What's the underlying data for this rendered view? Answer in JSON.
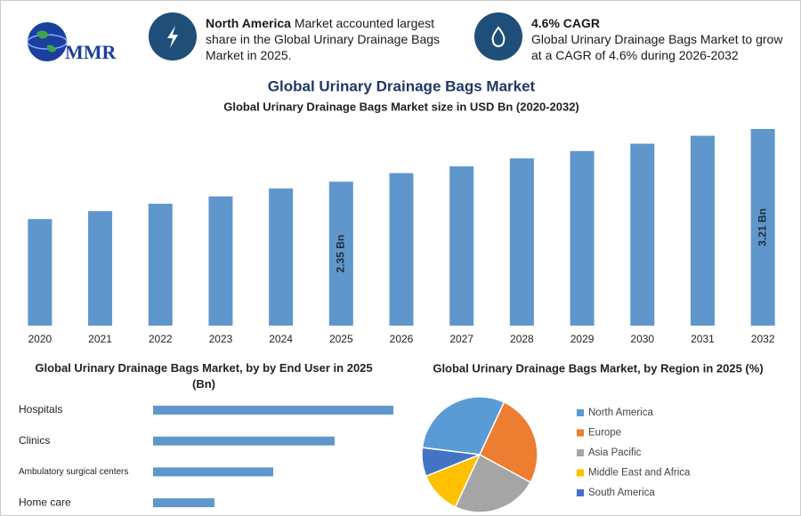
{
  "header": {
    "logo": "MMR",
    "info": [
      {
        "highlight": "North America",
        "text": "Market accounted largest share in the Global Urinary Drainage Bags Market in 2025."
      },
      {
        "highlight": "4.6% CAGR",
        "text": "Global Urinary Drainage Bags Market to grow at a CAGR of 4.6% during 2026-2032"
      }
    ]
  },
  "chart_data": [
    {
      "type": "bar",
      "title": "Global Urinary Drainage Bags Market",
      "subtitle": "Global Urinary Drainage Bags Market size in USD Bn (2020-2032)",
      "categories": [
        "2020",
        "2021",
        "2022",
        "2023",
        "2024",
        "2025",
        "2026",
        "2027",
        "2028",
        "2029",
        "2030",
        "2031",
        "2032"
      ],
      "values": [
        1.74,
        1.87,
        1.99,
        2.11,
        2.24,
        2.35,
        2.49,
        2.6,
        2.73,
        2.85,
        2.97,
        3.1,
        3.21
      ],
      "value_labels": [
        null,
        null,
        null,
        null,
        null,
        "2.35 Bn",
        null,
        null,
        null,
        null,
        null,
        null,
        "3.21 Bn"
      ],
      "color": "#5f97cc"
    },
    {
      "type": "hbar",
      "title": "Global Urinary Drainage Bags Market, by by End User in 2025 (Bn)",
      "categories": [
        "Hospitals",
        "Clinics",
        "Ambulatory surgical centers",
        "Home care"
      ],
      "values": [
        0.94,
        0.71,
        0.47,
        0.24
      ],
      "color": "#5f97cc"
    },
    {
      "type": "pie",
      "title": "Global Urinary Drainage Bags Market, by Region in 2025 (%)",
      "categories": [
        "North America",
        "Europe",
        "Asia Pacific",
        "Middle East and Africa",
        "South America"
      ],
      "values": [
        30,
        26,
        24,
        12,
        8
      ],
      "colors": [
        "#5b9bd5",
        "#ed7d31",
        "#a5a5a5",
        "#ffc000",
        "#4472c4"
      ]
    }
  ]
}
